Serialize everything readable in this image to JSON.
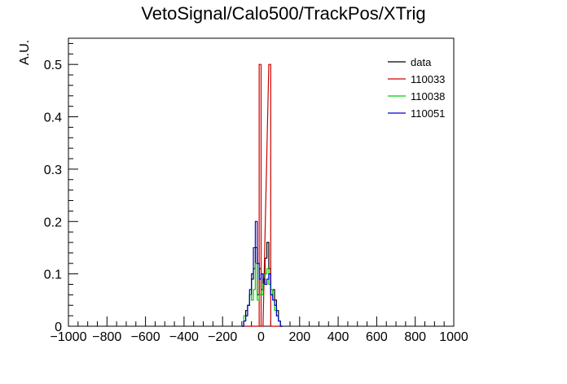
{
  "chart_data": {
    "type": "histogram",
    "title": "VetoSignal/Calo500/TrackPos/XTrig",
    "xlabel": "",
    "ylabel": "A.U.",
    "xlim": [
      -1000,
      1000
    ],
    "ylim": [
      0,
      0.55
    ],
    "xticks": [
      -1000,
      -800,
      -600,
      -400,
      -200,
      0,
      200,
      400,
      600,
      800,
      1000
    ],
    "yticks": [
      0,
      0.1,
      0.2,
      0.3,
      0.4,
      0.5
    ],
    "ytick_labels": [
      "0",
      "0.1",
      "0.2",
      "0.3",
      "0.4",
      "0.5"
    ],
    "legend_position": "top-right",
    "bin_width": 10,
    "series": [
      {
        "name": "data",
        "color": "#000000",
        "bins": [
          [
            -100,
            0
          ],
          [
            -90,
            0.01
          ],
          [
            -80,
            0.03
          ],
          [
            -70,
            0.04
          ],
          [
            -60,
            0.06
          ],
          [
            -50,
            0.09
          ],
          [
            -40,
            0.11
          ],
          [
            -30,
            0.15
          ],
          [
            -20,
            0.06
          ],
          [
            -10,
            0.11
          ],
          [
            0,
            0.07
          ],
          [
            10,
            0.09
          ],
          [
            20,
            0.13
          ],
          [
            30,
            0.16
          ],
          [
            40,
            0.11
          ],
          [
            50,
            0.06
          ],
          [
            60,
            0.07
          ],
          [
            70,
            0.05
          ],
          [
            80,
            0.03
          ],
          [
            90,
            0.01
          ],
          [
            100,
            0
          ]
        ]
      },
      {
        "name": "110033",
        "color": "#cc0000",
        "bins": [
          [
            -100,
            0
          ],
          [
            -20,
            0
          ],
          [
            -10,
            0.5
          ],
          [
            0,
            0
          ],
          [
            40,
            0.5
          ],
          [
            50,
            0
          ],
          [
            100,
            0
          ]
        ]
      },
      {
        "name": "110038",
        "color": "#00cc00",
        "bins": [
          [
            -100,
            0
          ],
          [
            -90,
            0.02
          ],
          [
            -80,
            0.02
          ],
          [
            -70,
            0.04
          ],
          [
            -60,
            0.06
          ],
          [
            -50,
            0.05
          ],
          [
            -40,
            0.07
          ],
          [
            -30,
            0.12
          ],
          [
            -20,
            0.05
          ],
          [
            -10,
            0.06
          ],
          [
            0,
            0.06
          ],
          [
            10,
            0.08
          ],
          [
            20,
            0.1
          ],
          [
            30,
            0.11
          ],
          [
            40,
            0.08
          ],
          [
            50,
            0.07
          ],
          [
            60,
            0.05
          ],
          [
            70,
            0.03
          ],
          [
            80,
            0.02
          ],
          [
            90,
            0.01
          ],
          [
            100,
            0
          ]
        ]
      },
      {
        "name": "110051",
        "color": "#0000cc",
        "bins": [
          [
            -100,
            0
          ],
          [
            -90,
            0.01
          ],
          [
            -80,
            0.02
          ],
          [
            -70,
            0.04
          ],
          [
            -60,
            0.07
          ],
          [
            -50,
            0.1
          ],
          [
            -40,
            0.15
          ],
          [
            -30,
            0.2
          ],
          [
            -20,
            0.12
          ],
          [
            -10,
            0.09
          ],
          [
            0,
            0.1
          ],
          [
            10,
            0.09
          ],
          [
            20,
            0.08
          ],
          [
            30,
            0.09
          ],
          [
            40,
            0.1
          ],
          [
            50,
            0.06
          ],
          [
            60,
            0.05
          ],
          [
            70,
            0.04
          ],
          [
            80,
            0.02
          ],
          [
            90,
            0.01
          ],
          [
            100,
            0
          ]
        ]
      }
    ]
  }
}
